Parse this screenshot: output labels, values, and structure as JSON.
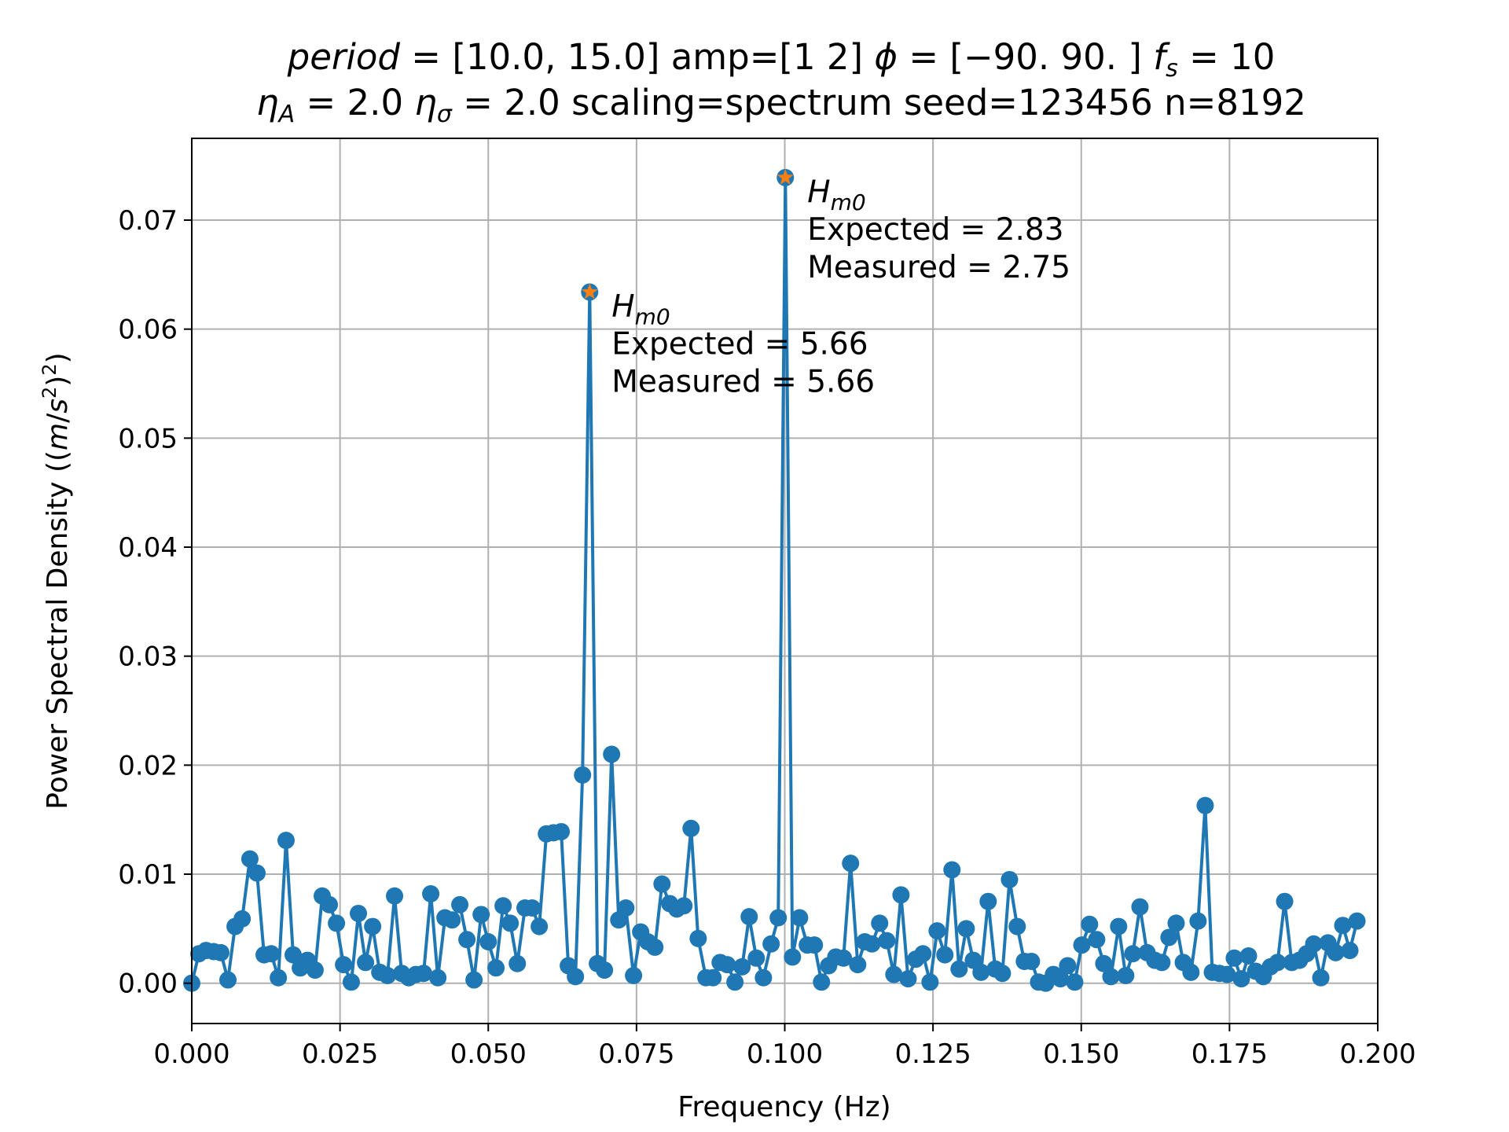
{
  "chart_data": {
    "type": "line",
    "title": {
      "line1": "period = [10.0, 15.0] amp=[1 2] ϕ = [−90. 90. ] f_s = 10",
      "line2": "η_A = 2.0 η_σ = 2.0 scaling=spectrum seed=123456 n=8192"
    },
    "xlabel": "Frequency (Hz)",
    "ylabel": "Power Spectral Density ((m/s²)²)",
    "xlim": [
      0.0,
      0.2
    ],
    "ylim": [
      -0.0037,
      0.0775
    ],
    "xticks": [
      0.0,
      0.025,
      0.05,
      0.075,
      0.1,
      0.125,
      0.15,
      0.175,
      0.2
    ],
    "xtick_labels": [
      "0.000",
      "0.025",
      "0.050",
      "0.075",
      "0.100",
      "0.125",
      "0.150",
      "0.175",
      "0.200"
    ],
    "yticks": [
      0.0,
      0.01,
      0.02,
      0.03,
      0.04,
      0.05,
      0.06,
      0.07
    ],
    "ytick_labels": [
      "0.00",
      "0.01",
      "0.02",
      "0.03",
      "0.04",
      "0.05",
      "0.06",
      "0.07"
    ],
    "grid": true,
    "colors": {
      "line": "#1f77b4",
      "peak_marker": "#ff7f0e",
      "grid": "#b0b0b0"
    },
    "series": [
      {
        "values": [
          [
            0.0,
            0.0
          ],
          [
            0.0012,
            0.0027
          ],
          [
            0.0024,
            0.003
          ],
          [
            0.0037,
            0.0029
          ],
          [
            0.0049,
            0.0028
          ],
          [
            0.0061,
            0.0003
          ],
          [
            0.0073,
            0.0052
          ],
          [
            0.0085,
            0.0059
          ],
          [
            0.0098,
            0.0114
          ],
          [
            0.011,
            0.0101
          ],
          [
            0.0122,
            0.0026
          ],
          [
            0.0134,
            0.0027
          ],
          [
            0.0146,
            0.0005
          ],
          [
            0.0159,
            0.0131
          ],
          [
            0.0171,
            0.0026
          ],
          [
            0.0183,
            0.0014
          ],
          [
            0.0195,
            0.0021
          ],
          [
            0.0208,
            0.0012
          ],
          [
            0.022,
            0.008
          ],
          [
            0.0232,
            0.0072
          ],
          [
            0.0244,
            0.0055
          ],
          [
            0.0256,
            0.0017
          ],
          [
            0.0269,
            0.0001
          ],
          [
            0.0281,
            0.0064
          ],
          [
            0.0293,
            0.0019
          ],
          [
            0.0305,
            0.0052
          ],
          [
            0.0317,
            0.001
          ],
          [
            0.033,
            0.0007
          ],
          [
            0.0342,
            0.008
          ],
          [
            0.0354,
            0.0009
          ],
          [
            0.0366,
            0.0005
          ],
          [
            0.0378,
            0.0008
          ],
          [
            0.0391,
            0.0009
          ],
          [
            0.0403,
            0.0082
          ],
          [
            0.0415,
            0.0005
          ],
          [
            0.0427,
            0.006
          ],
          [
            0.0439,
            0.0058
          ],
          [
            0.0452,
            0.0072
          ],
          [
            0.0464,
            0.004
          ],
          [
            0.0476,
            0.0003
          ],
          [
            0.0488,
            0.0063
          ],
          [
            0.05,
            0.0038
          ],
          [
            0.0513,
            0.0014
          ],
          [
            0.0525,
            0.0071
          ],
          [
            0.0537,
            0.0055
          ],
          [
            0.0549,
            0.0018
          ],
          [
            0.0562,
            0.0069
          ],
          [
            0.0574,
            0.0069
          ],
          [
            0.0586,
            0.0052
          ],
          [
            0.0598,
            0.0137
          ],
          [
            0.061,
            0.0138
          ],
          [
            0.0623,
            0.0139
          ],
          [
            0.0635,
            0.0016
          ],
          [
            0.0647,
            0.0006
          ],
          [
            0.0659,
            0.0191
          ],
          [
            0.0671,
            0.0634
          ],
          [
            0.0684,
            0.0018
          ],
          [
            0.0696,
            0.0012
          ],
          [
            0.0708,
            0.021
          ],
          [
            0.072,
            0.0058
          ],
          [
            0.0732,
            0.0069
          ],
          [
            0.0745,
            0.0007
          ],
          [
            0.0757,
            0.0047
          ],
          [
            0.0769,
            0.0038
          ],
          [
            0.0781,
            0.0033
          ],
          [
            0.0793,
            0.0091
          ],
          [
            0.0806,
            0.0073
          ],
          [
            0.0818,
            0.0068
          ],
          [
            0.083,
            0.0071
          ],
          [
            0.0842,
            0.0142
          ],
          [
            0.0854,
            0.0041
          ],
          [
            0.0867,
            0.0005
          ],
          [
            0.0879,
            0.0005
          ],
          [
            0.0891,
            0.0019
          ],
          [
            0.0903,
            0.0017
          ],
          [
            0.0916,
            0.0001
          ],
          [
            0.0928,
            0.0015
          ],
          [
            0.094,
            0.0061
          ],
          [
            0.0952,
            0.0023
          ],
          [
            0.0964,
            0.0005
          ],
          [
            0.0977,
            0.0036
          ],
          [
            0.0989,
            0.006
          ],
          [
            0.1001,
            0.0739
          ],
          [
            0.1013,
            0.0024
          ],
          [
            0.1025,
            0.006
          ],
          [
            0.1038,
            0.0035
          ],
          [
            0.105,
            0.0035
          ],
          [
            0.1062,
            0.0001
          ],
          [
            0.1074,
            0.0016
          ],
          [
            0.1086,
            0.0024
          ],
          [
            0.1099,
            0.0023
          ],
          [
            0.1111,
            0.011
          ],
          [
            0.1123,
            0.0017
          ],
          [
            0.1135,
            0.0038
          ],
          [
            0.1147,
            0.0036
          ],
          [
            0.116,
            0.0055
          ],
          [
            0.1172,
            0.0039
          ],
          [
            0.1184,
            0.0008
          ],
          [
            0.1196,
            0.0081
          ],
          [
            0.1208,
            0.0004
          ],
          [
            0.1221,
            0.0022
          ],
          [
            0.1233,
            0.0027
          ],
          [
            0.1245,
            0.0001
          ],
          [
            0.1257,
            0.0048
          ],
          [
            0.127,
            0.0026
          ],
          [
            0.1282,
            0.0104
          ],
          [
            0.1294,
            0.0013
          ],
          [
            0.1306,
            0.005
          ],
          [
            0.1318,
            0.0021
          ],
          [
            0.1331,
            0.001
          ],
          [
            0.1343,
            0.0075
          ],
          [
            0.1355,
            0.0013
          ],
          [
            0.1367,
            0.0009
          ],
          [
            0.1379,
            0.0095
          ],
          [
            0.1392,
            0.0052
          ],
          [
            0.1404,
            0.002
          ],
          [
            0.1416,
            0.002
          ],
          [
            0.1428,
            0.0001
          ],
          [
            0.144,
            0.0
          ],
          [
            0.1453,
            0.0008
          ],
          [
            0.1465,
            0.0004
          ],
          [
            0.1477,
            0.0016
          ],
          [
            0.1489,
            0.0001
          ],
          [
            0.1501,
            0.0035
          ],
          [
            0.1514,
            0.0054
          ],
          [
            0.1526,
            0.004
          ],
          [
            0.1538,
            0.0018
          ],
          [
            0.155,
            0.0006
          ],
          [
            0.1563,
            0.0052
          ],
          [
            0.1575,
            0.0007
          ],
          [
            0.1587,
            0.0027
          ],
          [
            0.1599,
            0.007
          ],
          [
            0.1611,
            0.0028
          ],
          [
            0.1624,
            0.0021
          ],
          [
            0.1636,
            0.0019
          ],
          [
            0.1648,
            0.0042
          ],
          [
            0.166,
            0.0055
          ],
          [
            0.1672,
            0.0019
          ],
          [
            0.1685,
            0.001
          ],
          [
            0.1697,
            0.0057
          ],
          [
            0.1709,
            0.0163
          ],
          [
            0.1721,
            0.001
          ],
          [
            0.1733,
            0.0009
          ],
          [
            0.1746,
            0.0008
          ],
          [
            0.1758,
            0.0023
          ],
          [
            0.177,
            0.0004
          ],
          [
            0.1782,
            0.0025
          ],
          [
            0.1794,
            0.0011
          ],
          [
            0.1807,
            0.0006
          ],
          [
            0.1819,
            0.0015
          ],
          [
            0.1831,
            0.0019
          ],
          [
            0.1843,
            0.0075
          ],
          [
            0.1855,
            0.0019
          ],
          [
            0.1868,
            0.0021
          ],
          [
            0.188,
            0.0027
          ],
          [
            0.1892,
            0.0036
          ],
          [
            0.1904,
            0.0005
          ],
          [
            0.1916,
            0.0037
          ],
          [
            0.1929,
            0.0028
          ],
          [
            0.1941,
            0.0053
          ],
          [
            0.1953,
            0.003
          ],
          [
            0.1965,
            0.0057
          ]
        ]
      }
    ],
    "peaks": [
      {
        "x": 0.0671,
        "y": 0.0634,
        "label_var": "H",
        "label_sub": "m0",
        "expected_text": "Expected = 5.66",
        "measured_text": "Measured = 5.66"
      },
      {
        "x": 0.1001,
        "y": 0.0739,
        "label_var": "H",
        "label_sub": "m0",
        "expected_text": "Expected = 2.83",
        "measured_text": "Measured = 2.75"
      }
    ]
  }
}
